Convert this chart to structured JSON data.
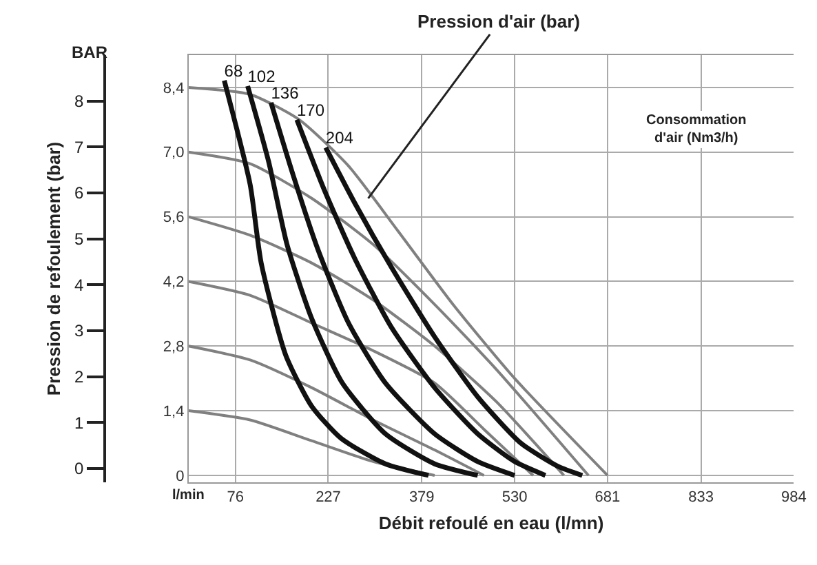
{
  "chart_data": {
    "type": "line",
    "ylabel": "Pression de refoulement (bar)",
    "xlabel": "Débit refoulé en eau (l/mn)",
    "annotations": [
      {
        "text": "Pression d'air (bar)",
        "x": 292,
        "y": 6.0
      },
      "Consommation d'air (Nm3/h)",
      "BAR",
      "l/min"
    ],
    "xlim": [
      0,
      984
    ],
    "xticks": [
      76,
      227,
      379,
      530,
      681,
      833,
      984
    ],
    "ylim": [
      -0.3,
      9.0
    ],
    "yticks": [
      0,
      1,
      2,
      3,
      4,
      5,
      6,
      7,
      8
    ],
    "y2lim": [
      -0.15,
      9.1
    ],
    "y2ticks": [
      {
        "value": 0,
        "label": "0"
      },
      {
        "value": 1.4,
        "label": "1,4"
      },
      {
        "value": 2.8,
        "label": "2,8"
      },
      {
        "value": 4.2,
        "label": "4,2"
      },
      {
        "value": 5.6,
        "label": "5,6"
      },
      {
        "value": 7.0,
        "label": "7,0"
      },
      {
        "value": 8.4,
        "label": "8,4"
      }
    ],
    "grid": true,
    "legend": false,
    "marker": "none",
    "line_style": "solid",
    "series": [
      {
        "axis": "y2",
        "color": "#808080",
        "x": [
          0,
          100,
          200,
          300,
          400
        ],
        "values": [
          1.4,
          1.2,
          0.75,
          0.3,
          0
        ]
      },
      {
        "axis": "y2",
        "color": "#808080",
        "x": [
          0,
          100,
          200,
          300,
          400,
          480
        ],
        "values": [
          2.8,
          2.5,
          1.9,
          1.2,
          0.55,
          0
        ]
      },
      {
        "axis": "y2",
        "color": "#808080",
        "x": [
          0,
          100,
          200,
          300,
          400,
          480,
          560
        ],
        "values": [
          4.2,
          3.9,
          3.3,
          2.7,
          2.0,
          1.0,
          0
        ]
      },
      {
        "axis": "y2",
        "color": "#808080",
        "x": [
          0,
          100,
          200,
          300,
          400,
          500,
          610
        ],
        "values": [
          5.6,
          5.2,
          4.6,
          3.8,
          2.8,
          1.6,
          0
        ]
      },
      {
        "axis": "y2",
        "color": "#808080",
        "x": [
          0,
          100,
          200,
          300,
          400,
          500,
          650
        ],
        "values": [
          7.0,
          6.75,
          6.0,
          5.0,
          3.7,
          2.3,
          0
        ]
      },
      {
        "axis": "y2",
        "color": "#808080",
        "x": [
          0,
          100,
          180,
          260,
          340,
          430,
          530,
          681
        ],
        "values": [
          8.4,
          8.25,
          7.7,
          6.7,
          5.3,
          3.7,
          2.1,
          0
        ]
      },
      {
        "axis": "y2",
        "name": "68",
        "color": "#111111",
        "x": [
          58,
          100,
          118,
          158,
          200,
          248,
          320,
          390
        ],
        "values": [
          8.55,
          6.3,
          4.6,
          2.6,
          1.5,
          0.8,
          0.25,
          0
        ]
      },
      {
        "axis": "y2",
        "name": "102",
        "color": "#111111",
        "x": [
          96,
          130,
          160,
          200,
          250,
          320,
          400,
          470
        ],
        "values": [
          8.43,
          6.8,
          5.0,
          3.4,
          2.0,
          0.9,
          0.25,
          0
        ]
      },
      {
        "axis": "y2",
        "name": "136",
        "color": "#111111",
        "x": [
          134,
          170,
          210,
          260,
          320,
          400,
          470,
          530
        ],
        "values": [
          8.07,
          6.5,
          4.9,
          3.3,
          2.0,
          0.9,
          0.3,
          0
        ]
      },
      {
        "axis": "y2",
        "name": "170",
        "color": "#111111",
        "x": [
          176,
          220,
          270,
          330,
          400,
          470,
          530,
          580
        ],
        "values": [
          7.7,
          6.2,
          4.7,
          3.2,
          1.9,
          0.9,
          0.3,
          0
        ]
      },
      {
        "axis": "y2",
        "name": "204",
        "color": "#111111",
        "x": [
          223,
          270,
          330,
          400,
          470,
          540,
          600,
          640
        ],
        "values": [
          7.1,
          5.9,
          4.5,
          3.0,
          1.7,
          0.7,
          0.2,
          0
        ]
      }
    ]
  }
}
